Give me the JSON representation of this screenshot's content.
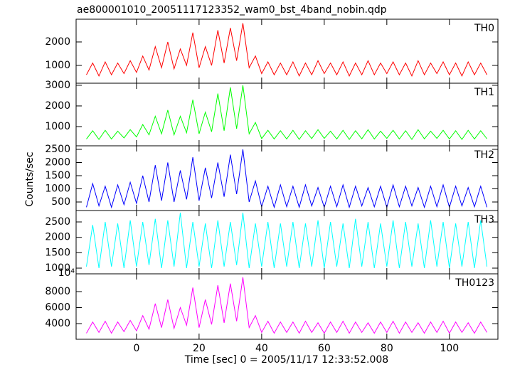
{
  "chart_data": {
    "type": "line",
    "title": "ae800001010_20051117123352_wam0_bst_4band_nobin.qdp",
    "xlabel": "Time [sec] 0 = 2005/11/17 12:33:52.008",
    "ylabel": "Counts/sec",
    "x": [
      -16,
      -14,
      -12,
      -10,
      -8,
      -6,
      -4,
      -2,
      0,
      2,
      4,
      6,
      8,
      10,
      12,
      14,
      16,
      18,
      20,
      22,
      24,
      26,
      28,
      30,
      32,
      34,
      36,
      38,
      40,
      42,
      44,
      46,
      48,
      50,
      52,
      54,
      56,
      58,
      60,
      62,
      64,
      66,
      68,
      70,
      72,
      74,
      76,
      78,
      80,
      82,
      84,
      86,
      88,
      90,
      92,
      94,
      96,
      98,
      100,
      102,
      104,
      106,
      108,
      110,
      112
    ],
    "xlim": [
      -19.3,
      115.5
    ],
    "xticks": [
      0,
      20,
      40,
      60,
      80,
      100
    ],
    "series": [
      {
        "name": "TH0",
        "color": "#ff0000",
        "ylim": [
          240,
          2970
        ],
        "yticks": [
          1000,
          2000
        ],
        "values": [
          600,
          1100,
          550,
          1150,
          600,
          1100,
          650,
          1200,
          700,
          1400,
          800,
          1800,
          900,
          2000,
          850,
          1700,
          1000,
          2400,
          900,
          1800,
          1000,
          2500,
          1100,
          2600,
          1200,
          2800,
          900,
          1400,
          650,
          1150,
          600,
          1100,
          600,
          1150,
          550,
          1100,
          600,
          1200,
          650,
          1100,
          600,
          1150,
          550,
          1100,
          600,
          1200,
          600,
          1100,
          650,
          1150,
          600,
          1100,
          550,
          1200,
          600,
          1100,
          650,
          1150,
          600,
          1100,
          550,
          1150,
          600,
          1100,
          600
        ]
      },
      {
        "name": "TH1",
        "color": "#00ff00",
        "ylim": [
          70,
          3100
        ],
        "yticks": [
          1000,
          2000,
          3000
        ],
        "values": [
          400,
          800,
          380,
          820,
          400,
          780,
          450,
          850,
          500,
          1100,
          600,
          1500,
          650,
          1800,
          600,
          1500,
          700,
          2300,
          650,
          1700,
          750,
          2600,
          800,
          2900,
          900,
          3000,
          650,
          1200,
          420,
          820,
          400,
          800,
          400,
          820,
          380,
          800,
          420,
          850,
          430,
          780,
          400,
          820,
          380,
          800,
          410,
          850,
          400,
          780,
          430,
          820,
          400,
          800,
          380,
          850,
          410,
          780,
          430,
          820,
          400,
          800,
          380,
          820,
          400,
          800,
          410
        ]
      },
      {
        "name": "TH2",
        "color": "#0000ff",
        "ylim": [
          176,
          2635
        ],
        "yticks": [
          500,
          1000,
          1500,
          2000,
          2500
        ],
        "values": [
          300,
          1200,
          350,
          1100,
          300,
          1150,
          400,
          1250,
          450,
          1500,
          500,
          1900,
          550,
          2000,
          500,
          1700,
          600,
          2200,
          550,
          1800,
          650,
          2000,
          700,
          2300,
          800,
          2500,
          500,
          1300,
          320,
          1100,
          300,
          1150,
          320,
          1100,
          300,
          1150,
          350,
          1050,
          300,
          1100,
          320,
          1150,
          300,
          1100,
          350,
          1050,
          320,
          1100,
          300,
          1150,
          320,
          1100,
          350,
          1050,
          300,
          1100,
          320,
          1150,
          300,
          1100,
          350,
          1050,
          320,
          1100,
          300
        ]
      },
      {
        "name": "TH3",
        "color": "#00ffff",
        "ylim": [
          815,
          2870
        ],
        "yticks": [
          1000,
          1500,
          2000,
          2500
        ],
        "values": [
          1050,
          2400,
          1000,
          2500,
          1050,
          2450,
          1000,
          2550,
          1050,
          2500,
          1100,
          2600,
          1000,
          2550,
          1050,
          2800,
          1000,
          2500,
          1050,
          2450,
          1000,
          2550,
          1050,
          2500,
          1100,
          2800,
          1000,
          2450,
          1050,
          2500,
          1000,
          2450,
          1050,
          2500,
          1000,
          2450,
          1050,
          2550,
          1000,
          2500,
          1050,
          2450,
          1000,
          2600,
          1050,
          2500,
          1000,
          2450,
          1050,
          2550,
          1000,
          2500,
          1050,
          2450,
          1000,
          2550,
          1050,
          2500,
          1000,
          2450,
          1050,
          2500,
          1000,
          2550,
          1050
        ]
      },
      {
        "name": "TH0123",
        "color": "#ff00ff",
        "ylim": [
          2044,
          10222
        ],
        "yticks": [
          4000,
          6000,
          8000
        ],
        "annotation": "10⁴",
        "values": [
          2800,
          4200,
          2900,
          4300,
          2800,
          4200,
          3000,
          4400,
          3100,
          5000,
          3300,
          6500,
          3500,
          7000,
          3400,
          6000,
          3800,
          8500,
          3500,
          7000,
          3900,
          8800,
          4100,
          9000,
          4300,
          9800,
          3500,
          5000,
          2900,
          4300,
          2800,
          4200,
          2900,
          4200,
          2800,
          4300,
          2900,
          4100,
          2800,
          4200,
          2900,
          4300,
          2800,
          4200,
          2900,
          4100,
          2800,
          4200,
          2900,
          4300,
          2800,
          4200,
          2900,
          4100,
          2800,
          4200,
          2900,
          4300,
          2800,
          4200,
          2900,
          4100,
          2800,
          4200,
          2900
        ]
      }
    ]
  }
}
